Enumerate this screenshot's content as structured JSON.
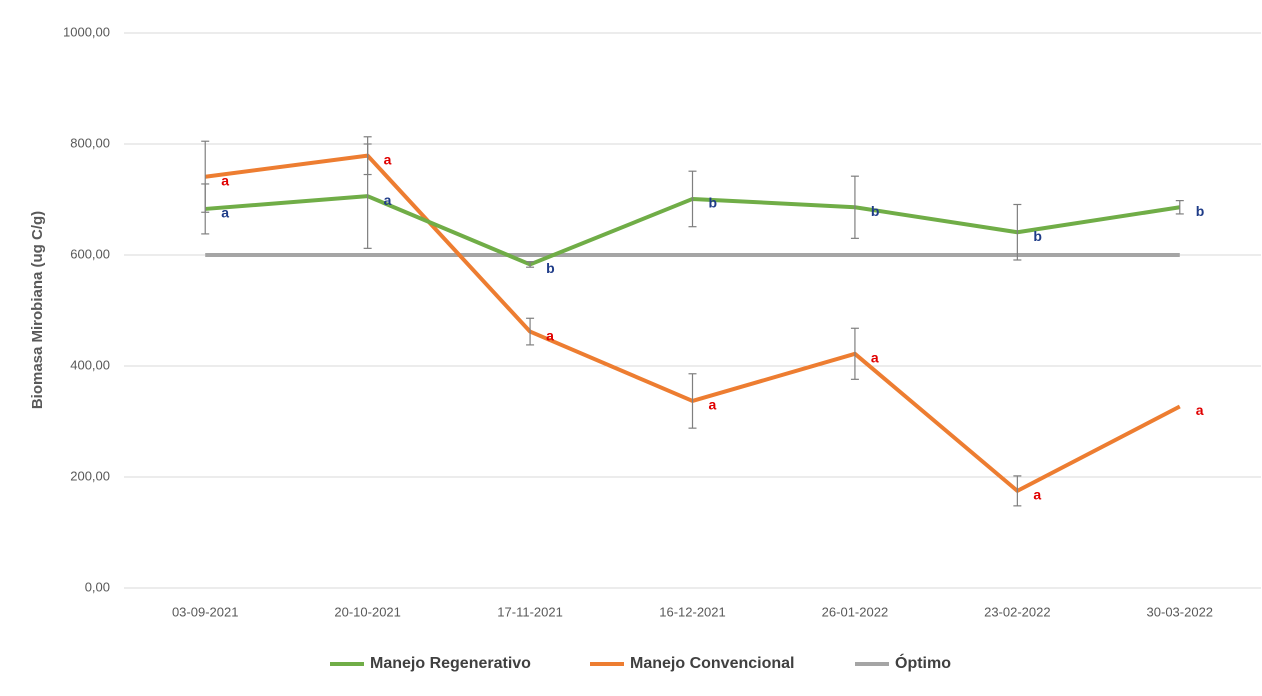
{
  "chart_data": {
    "type": "line",
    "y_label": "Biomasa Mirobiana (ug C/g)",
    "categories": [
      "03-09-2021",
      "20-10-2021",
      "17-11-2021",
      "16-12-2021",
      "26-01-2022",
      "23-02-2022",
      "30-03-2022"
    ],
    "series": [
      {
        "name": "Manejo Regenerativo",
        "color": "#70ad47",
        "values": [
          683,
          706,
          583,
          701,
          686,
          641,
          686
        ],
        "errors": [
          45,
          94,
          5,
          50,
          56,
          50,
          12
        ],
        "letters": [
          "a",
          "a",
          "b",
          "b",
          "b",
          "b",
          "b"
        ],
        "letter_color": "#1f3c88"
      },
      {
        "name": "Manejo Convencional",
        "color": "#ed7d31",
        "values": [
          741,
          779,
          462,
          337,
          422,
          175,
          327
        ],
        "errors": [
          64,
          34,
          24,
          49,
          46,
          27,
          null
        ],
        "letters": [
          "a",
          "a",
          "a",
          "a",
          "a",
          "a",
          "a"
        ],
        "letter_color": "#e00000"
      },
      {
        "name": "Óptimo",
        "color": "#a5a5a5",
        "values": [
          600,
          600,
          600,
          600,
          600,
          600,
          600
        ]
      }
    ],
    "ylim": [
      0,
      1000
    ],
    "yticks": [
      {
        "value": 0,
        "label": "0,00"
      },
      {
        "value": 200,
        "label": "200,00"
      },
      {
        "value": 400,
        "label": "400,00"
      },
      {
        "value": 600,
        "label": "600,00"
      },
      {
        "value": 800,
        "label": "800,00"
      },
      {
        "value": 1000,
        "label": "1000,00"
      }
    ],
    "grid": true,
    "legend": "bottom"
  }
}
